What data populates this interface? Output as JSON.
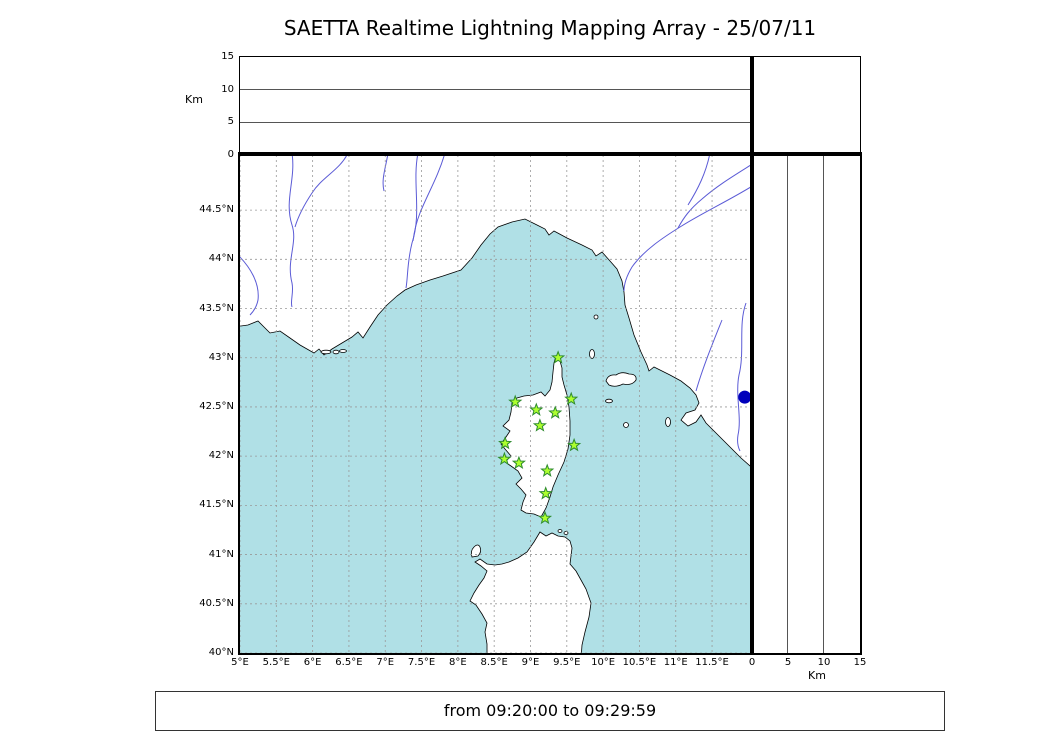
{
  "title": "SAETTA Realtime Lightning Mapping Array - 25/07/11",
  "caption": "from 09:20:00 to 09:29:59",
  "axis_labels": {
    "km_top": "Km",
    "km_bottom": "Km"
  },
  "chart_data": {
    "type": "scatter",
    "title": "SAETTA Realtime Lightning Mapping Array - 25/07/11",
    "subtitle": "from 09:20:00 to 09:29:59",
    "time_window": {
      "from": "09:20:00",
      "to": "09:29:59"
    },
    "map_panel": {
      "lon_range": [
        5.0,
        12.05
      ],
      "lat_range": [
        40.0,
        45.06
      ],
      "grid": true,
      "lon_ticks": [
        {
          "label": "5°E",
          "value": 5
        },
        {
          "label": "5.5°E",
          "value": 5.5
        },
        {
          "label": "6°E",
          "value": 6
        },
        {
          "label": "6.5°E",
          "value": 6.5
        },
        {
          "label": "7°E",
          "value": 7
        },
        {
          "label": "7.5°E",
          "value": 7.5
        },
        {
          "label": "8°E",
          "value": 8
        },
        {
          "label": "8.5°E",
          "value": 8.5
        },
        {
          "label": "9°E",
          "value": 9
        },
        {
          "label": "9.5°E",
          "value": 9.5
        },
        {
          "label": "10°E",
          "value": 10
        },
        {
          "label": "10.5°E",
          "value": 10.5
        },
        {
          "label": "11°E",
          "value": 11
        },
        {
          "label": "11.5°E",
          "value": 11.5
        }
      ],
      "lat_ticks": [
        {
          "label": "44.5°N",
          "value": 44.5
        },
        {
          "label": "44°N",
          "value": 44
        },
        {
          "label": "43.5°N",
          "value": 43.5
        },
        {
          "label": "43°N",
          "value": 43
        },
        {
          "label": "42.5°N",
          "value": 42.5
        },
        {
          "label": "42°N",
          "value": 42
        },
        {
          "label": "41.5°N",
          "value": 41.5
        },
        {
          "label": "41°N",
          "value": 41
        },
        {
          "label": "40.5°N",
          "value": 40.5
        },
        {
          "label": "40°N",
          "value": 40
        }
      ]
    },
    "altitude_panels": {
      "km_label": "Km",
      "km_range": [
        0,
        15
      ],
      "km_ticks": [
        {
          "label": "0",
          "value": 0
        },
        {
          "label": "5",
          "value": 5
        },
        {
          "label": "10",
          "value": 10
        },
        {
          "label": "15",
          "value": 15
        }
      ],
      "gridlines_km": [
        5,
        10
      ]
    },
    "stations": [
      {
        "lon": 9.38,
        "lat": 43.0
      },
      {
        "lon": 8.79,
        "lat": 42.55
      },
      {
        "lon": 9.56,
        "lat": 42.58
      },
      {
        "lon": 9.08,
        "lat": 42.47
      },
      {
        "lon": 9.34,
        "lat": 42.44
      },
      {
        "lon": 9.13,
        "lat": 42.31
      },
      {
        "lon": 8.65,
        "lat": 42.13
      },
      {
        "lon": 9.6,
        "lat": 42.11
      },
      {
        "lon": 8.64,
        "lat": 41.97
      },
      {
        "lon": 8.84,
        "lat": 41.93
      },
      {
        "lon": 9.23,
        "lat": 41.85
      },
      {
        "lon": 9.21,
        "lat": 41.62
      },
      {
        "lon": 9.2,
        "lat": 41.37
      }
    ],
    "lake_point": {
      "lon": 11.95,
      "lat": 42.6
    },
    "colors": {
      "sea": "#b0e0e6",
      "land": "#ffffff",
      "coast": "#000000",
      "river": "#5b5bd6",
      "grid": "#999999",
      "station_fill": "#adff2f",
      "station_edge": "#2e8b2e",
      "lake": "#0000bb"
    }
  }
}
